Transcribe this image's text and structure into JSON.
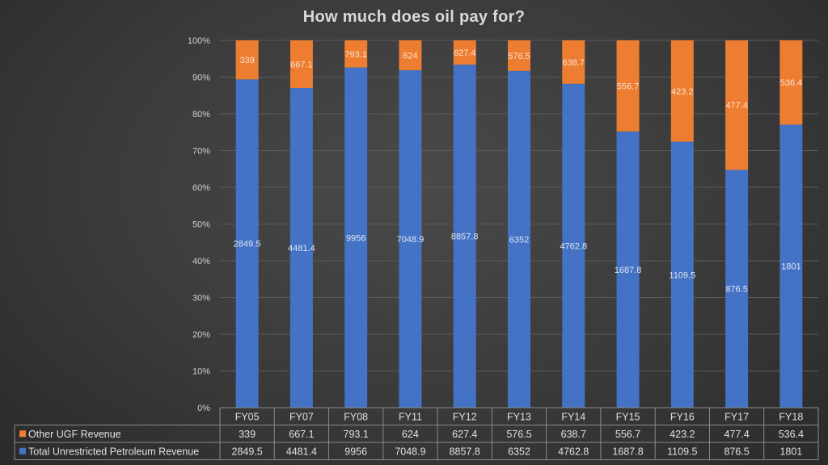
{
  "chart_data": {
    "type": "bar",
    "stacked": true,
    "normalized": true,
    "title": "How much does oil pay for?",
    "categories": [
      "FY05",
      "FY07",
      "FY08",
      "FY11",
      "FY12",
      "FY13",
      "FY14",
      "FY15",
      "FY16",
      "FY17",
      "FY18"
    ],
    "series": [
      {
        "name": "Total Unrestricted Petroleum Revenue",
        "color": "#4472c4",
        "values": [
          2849.5,
          4481.4,
          9956,
          7048.9,
          8857.8,
          6352,
          4762.8,
          1687.8,
          1109.5,
          876.5,
          1801
        ]
      },
      {
        "name": "Other UGF Revenue",
        "color": "#ed7d31",
        "values": [
          339,
          667.1,
          793.1,
          624,
          627.4,
          576.5,
          638.7,
          556.7,
          423.2,
          477.4,
          536.4
        ]
      }
    ],
    "y_ticks": [
      "0%",
      "10%",
      "20%",
      "30%",
      "40%",
      "50%",
      "60%",
      "70%",
      "80%",
      "90%",
      "100%"
    ],
    "ylim": [
      0,
      100
    ],
    "grid": true,
    "legend": "data-table"
  }
}
